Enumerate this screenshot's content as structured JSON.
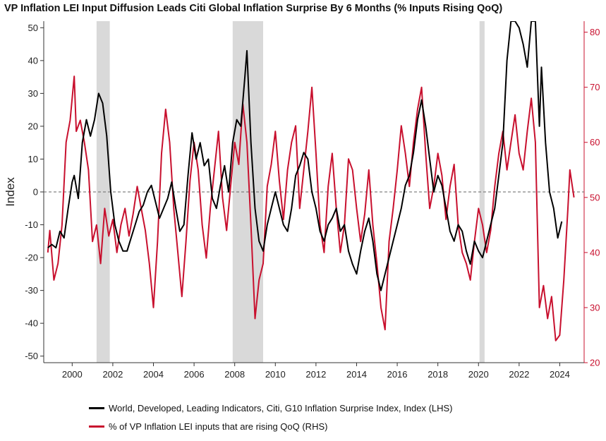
{
  "chart_data": {
    "type": "line",
    "title": "VP Inflation LEI Input Diffusion Leads Citi Global Inflation Surprise By 6 Months (% Inputs Rising QoQ)",
    "ylabel_left": "Index",
    "ylim_left": [
      -52,
      52
    ],
    "ylim_right": [
      20,
      82
    ],
    "yticks_left": [
      50,
      40,
      30,
      20,
      10,
      0,
      -10,
      -20,
      -30,
      -40,
      -50
    ],
    "yticks_right": [
      80,
      70,
      60,
      50,
      40,
      30,
      20
    ],
    "xlim": [
      1998.6,
      2025.2
    ],
    "xticks": [
      2000,
      2002,
      2004,
      2006,
      2008,
      2010,
      2012,
      2014,
      2016,
      2018,
      2020,
      2022,
      2024
    ],
    "reference_line_left": 0,
    "recessions": [
      [
        2001.2,
        2001.85
      ],
      [
        2007.9,
        2009.4
      ],
      [
        2020.05,
        2020.3
      ]
    ],
    "colors": {
      "lhs": "#000000",
      "rhs": "#c8102e",
      "recession": "#d9d9d9",
      "axis_right": "#c8102e"
    },
    "series": [
      {
        "name": "World, Developed, Leading Indicators, Citi, G10 Inflation Surprise Index, Index (LHS)",
        "axis": "left",
        "points": [
          [
            1998.8,
            -17
          ],
          [
            1999.0,
            -16
          ],
          [
            1999.2,
            -17
          ],
          [
            1999.4,
            -12
          ],
          [
            1999.6,
            -14
          ],
          [
            1999.8,
            -5
          ],
          [
            2000.0,
            3
          ],
          [
            2000.1,
            5
          ],
          [
            2000.3,
            -2
          ],
          [
            2000.5,
            15
          ],
          [
            2000.7,
            22
          ],
          [
            2000.9,
            17
          ],
          [
            2001.1,
            22
          ],
          [
            2001.3,
            30
          ],
          [
            2001.5,
            27
          ],
          [
            2001.7,
            17
          ],
          [
            2001.9,
            0
          ],
          [
            2002.1,
            -10
          ],
          [
            2002.3,
            -15
          ],
          [
            2002.5,
            -18
          ],
          [
            2002.7,
            -18
          ],
          [
            2002.9,
            -14
          ],
          [
            2003.1,
            -10
          ],
          [
            2003.3,
            -6
          ],
          [
            2003.5,
            -4
          ],
          [
            2003.7,
            0
          ],
          [
            2003.9,
            2
          ],
          [
            2004.1,
            -3
          ],
          [
            2004.3,
            -8
          ],
          [
            2004.5,
            -5
          ],
          [
            2004.7,
            -2
          ],
          [
            2004.9,
            3
          ],
          [
            2005.1,
            -5
          ],
          [
            2005.3,
            -12
          ],
          [
            2005.5,
            -10
          ],
          [
            2005.7,
            5
          ],
          [
            2005.9,
            18
          ],
          [
            2006.1,
            10
          ],
          [
            2006.3,
            15
          ],
          [
            2006.5,
            8
          ],
          [
            2006.7,
            10
          ],
          [
            2006.9,
            -2
          ],
          [
            2007.1,
            -5
          ],
          [
            2007.3,
            2
          ],
          [
            2007.5,
            8
          ],
          [
            2007.7,
            0
          ],
          [
            2007.9,
            15
          ],
          [
            2008.1,
            22
          ],
          [
            2008.3,
            20
          ],
          [
            2008.5,
            35
          ],
          [
            2008.6,
            43
          ],
          [
            2008.8,
            15
          ],
          [
            2009.0,
            -5
          ],
          [
            2009.2,
            -15
          ],
          [
            2009.4,
            -18
          ],
          [
            2009.6,
            -10
          ],
          [
            2009.8,
            -5
          ],
          [
            2010.0,
            0
          ],
          [
            2010.2,
            -5
          ],
          [
            2010.4,
            -10
          ],
          [
            2010.6,
            -12
          ],
          [
            2010.8,
            -5
          ],
          [
            2011.0,
            5
          ],
          [
            2011.2,
            8
          ],
          [
            2011.4,
            12
          ],
          [
            2011.6,
            10
          ],
          [
            2011.8,
            0
          ],
          [
            2012.0,
            -5
          ],
          [
            2012.2,
            -12
          ],
          [
            2012.4,
            -15
          ],
          [
            2012.6,
            -10
          ],
          [
            2012.8,
            -8
          ],
          [
            2013.0,
            -5
          ],
          [
            2013.2,
            -12
          ],
          [
            2013.4,
            -10
          ],
          [
            2013.6,
            -18
          ],
          [
            2013.8,
            -22
          ],
          [
            2014.0,
            -25
          ],
          [
            2014.2,
            -18
          ],
          [
            2014.4,
            -12
          ],
          [
            2014.6,
            -8
          ],
          [
            2014.8,
            -15
          ],
          [
            2015.0,
            -25
          ],
          [
            2015.2,
            -30
          ],
          [
            2015.4,
            -25
          ],
          [
            2015.6,
            -20
          ],
          [
            2015.8,
            -15
          ],
          [
            2016.0,
            -10
          ],
          [
            2016.2,
            -5
          ],
          [
            2016.4,
            2
          ],
          [
            2016.6,
            5
          ],
          [
            2016.8,
            12
          ],
          [
            2017.0,
            22
          ],
          [
            2017.2,
            28
          ],
          [
            2017.4,
            20
          ],
          [
            2017.6,
            10
          ],
          [
            2017.8,
            0
          ],
          [
            2018.0,
            5
          ],
          [
            2018.2,
            2
          ],
          [
            2018.4,
            -5
          ],
          [
            2018.6,
            -12
          ],
          [
            2018.8,
            -15
          ],
          [
            2019.0,
            -10
          ],
          [
            2019.2,
            -12
          ],
          [
            2019.4,
            -18
          ],
          [
            2019.6,
            -22
          ],
          [
            2019.8,
            -15
          ],
          [
            2020.0,
            -18
          ],
          [
            2020.2,
            -20
          ],
          [
            2020.4,
            -15
          ],
          [
            2020.6,
            -10
          ],
          [
            2020.8,
            -5
          ],
          [
            2021.0,
            5
          ],
          [
            2021.2,
            15
          ],
          [
            2021.4,
            40
          ],
          [
            2021.6,
            52
          ],
          [
            2021.8,
            52
          ],
          [
            2022.0,
            50
          ],
          [
            2022.2,
            45
          ],
          [
            2022.4,
            38
          ],
          [
            2022.6,
            52
          ],
          [
            2022.8,
            52
          ],
          [
            2023.0,
            20
          ],
          [
            2023.1,
            38
          ],
          [
            2023.3,
            15
          ],
          [
            2023.5,
            0
          ],
          [
            2023.7,
            -5
          ],
          [
            2023.9,
            -14
          ],
          [
            2024.1,
            -9
          ]
        ]
      },
      {
        "name": "% of VP Inflation LEI inputs that are rising QoQ (RHS)",
        "axis": "right",
        "points": [
          [
            1998.8,
            40
          ],
          [
            1998.9,
            44
          ],
          [
            1999.1,
            35
          ],
          [
            1999.3,
            38
          ],
          [
            1999.5,
            45
          ],
          [
            1999.7,
            60
          ],
          [
            1999.9,
            64
          ],
          [
            2000.1,
            72
          ],
          [
            2000.2,
            62
          ],
          [
            2000.4,
            64
          ],
          [
            2000.6,
            60
          ],
          [
            2000.8,
            55
          ],
          [
            2001.0,
            42
          ],
          [
            2001.2,
            45
          ],
          [
            2001.4,
            38
          ],
          [
            2001.6,
            48
          ],
          [
            2001.8,
            43
          ],
          [
            2002.0,
            46
          ],
          [
            2002.2,
            40
          ],
          [
            2002.4,
            45
          ],
          [
            2002.6,
            48
          ],
          [
            2002.8,
            43
          ],
          [
            2003.0,
            47
          ],
          [
            2003.2,
            52
          ],
          [
            2003.4,
            48
          ],
          [
            2003.6,
            44
          ],
          [
            2003.8,
            38
          ],
          [
            2004.0,
            30
          ],
          [
            2004.2,
            42
          ],
          [
            2004.4,
            58
          ],
          [
            2004.6,
            66
          ],
          [
            2004.8,
            60
          ],
          [
            2005.0,
            48
          ],
          [
            2005.2,
            40
          ],
          [
            2005.4,
            32
          ],
          [
            2005.6,
            42
          ],
          [
            2005.8,
            53
          ],
          [
            2006.0,
            60
          ],
          [
            2006.2,
            55
          ],
          [
            2006.4,
            45
          ],
          [
            2006.6,
            39
          ],
          [
            2006.8,
            48
          ],
          [
            2007.0,
            55
          ],
          [
            2007.2,
            62
          ],
          [
            2007.4,
            50
          ],
          [
            2007.6,
            44
          ],
          [
            2007.8,
            52
          ],
          [
            2008.0,
            60
          ],
          [
            2008.2,
            56
          ],
          [
            2008.4,
            67
          ],
          [
            2008.6,
            60
          ],
          [
            2008.8,
            45
          ],
          [
            2009.0,
            28
          ],
          [
            2009.2,
            35
          ],
          [
            2009.4,
            38
          ],
          [
            2009.6,
            52
          ],
          [
            2009.8,
            56
          ],
          [
            2010.0,
            62
          ],
          [
            2010.2,
            53
          ],
          [
            2010.4,
            46
          ],
          [
            2010.6,
            55
          ],
          [
            2010.8,
            60
          ],
          [
            2011.0,
            63
          ],
          [
            2011.2,
            48
          ],
          [
            2011.4,
            55
          ],
          [
            2011.6,
            62
          ],
          [
            2011.8,
            70
          ],
          [
            2012.0,
            58
          ],
          [
            2012.2,
            45
          ],
          [
            2012.4,
            40
          ],
          [
            2012.6,
            52
          ],
          [
            2012.8,
            58
          ],
          [
            2013.0,
            48
          ],
          [
            2013.2,
            40
          ],
          [
            2013.4,
            45
          ],
          [
            2013.6,
            57
          ],
          [
            2013.8,
            55
          ],
          [
            2014.0,
            48
          ],
          [
            2014.2,
            42
          ],
          [
            2014.4,
            47
          ],
          [
            2014.6,
            55
          ],
          [
            2014.8,
            45
          ],
          [
            2015.0,
            38
          ],
          [
            2015.2,
            30
          ],
          [
            2015.4,
            26
          ],
          [
            2015.6,
            42
          ],
          [
            2015.8,
            48
          ],
          [
            2016.0,
            55
          ],
          [
            2016.2,
            63
          ],
          [
            2016.4,
            58
          ],
          [
            2016.6,
            52
          ],
          [
            2016.8,
            60
          ],
          [
            2017.0,
            66
          ],
          [
            2017.2,
            70
          ],
          [
            2017.4,
            58
          ],
          [
            2017.6,
            48
          ],
          [
            2017.8,
            52
          ],
          [
            2018.0,
            58
          ],
          [
            2018.2,
            54
          ],
          [
            2018.4,
            46
          ],
          [
            2018.6,
            52
          ],
          [
            2018.8,
            56
          ],
          [
            2019.0,
            45
          ],
          [
            2019.2,
            40
          ],
          [
            2019.4,
            38
          ],
          [
            2019.6,
            35
          ],
          [
            2019.8,
            42
          ],
          [
            2020.0,
            48
          ],
          [
            2020.2,
            45
          ],
          [
            2020.4,
            40
          ],
          [
            2020.6,
            44
          ],
          [
            2020.8,
            52
          ],
          [
            2021.0,
            58
          ],
          [
            2021.2,
            62
          ],
          [
            2021.4,
            55
          ],
          [
            2021.6,
            60
          ],
          [
            2021.8,
            65
          ],
          [
            2022.0,
            58
          ],
          [
            2022.2,
            55
          ],
          [
            2022.4,
            62
          ],
          [
            2022.6,
            68
          ],
          [
            2022.8,
            60
          ],
          [
            2023.0,
            30
          ],
          [
            2023.2,
            34
          ],
          [
            2023.4,
            28
          ],
          [
            2023.6,
            32
          ],
          [
            2023.8,
            24
          ],
          [
            2024.0,
            25
          ],
          [
            2024.2,
            35
          ],
          [
            2024.4,
            48
          ],
          [
            2024.5,
            55
          ],
          [
            2024.7,
            50
          ]
        ]
      }
    ]
  },
  "legend": {
    "item1": "World, Developed, Leading Indicators, Citi, G10 Inflation Surprise Index, Index (LHS)",
    "item2": "% of VP Inflation LEI inputs that are rising QoQ (RHS)"
  }
}
